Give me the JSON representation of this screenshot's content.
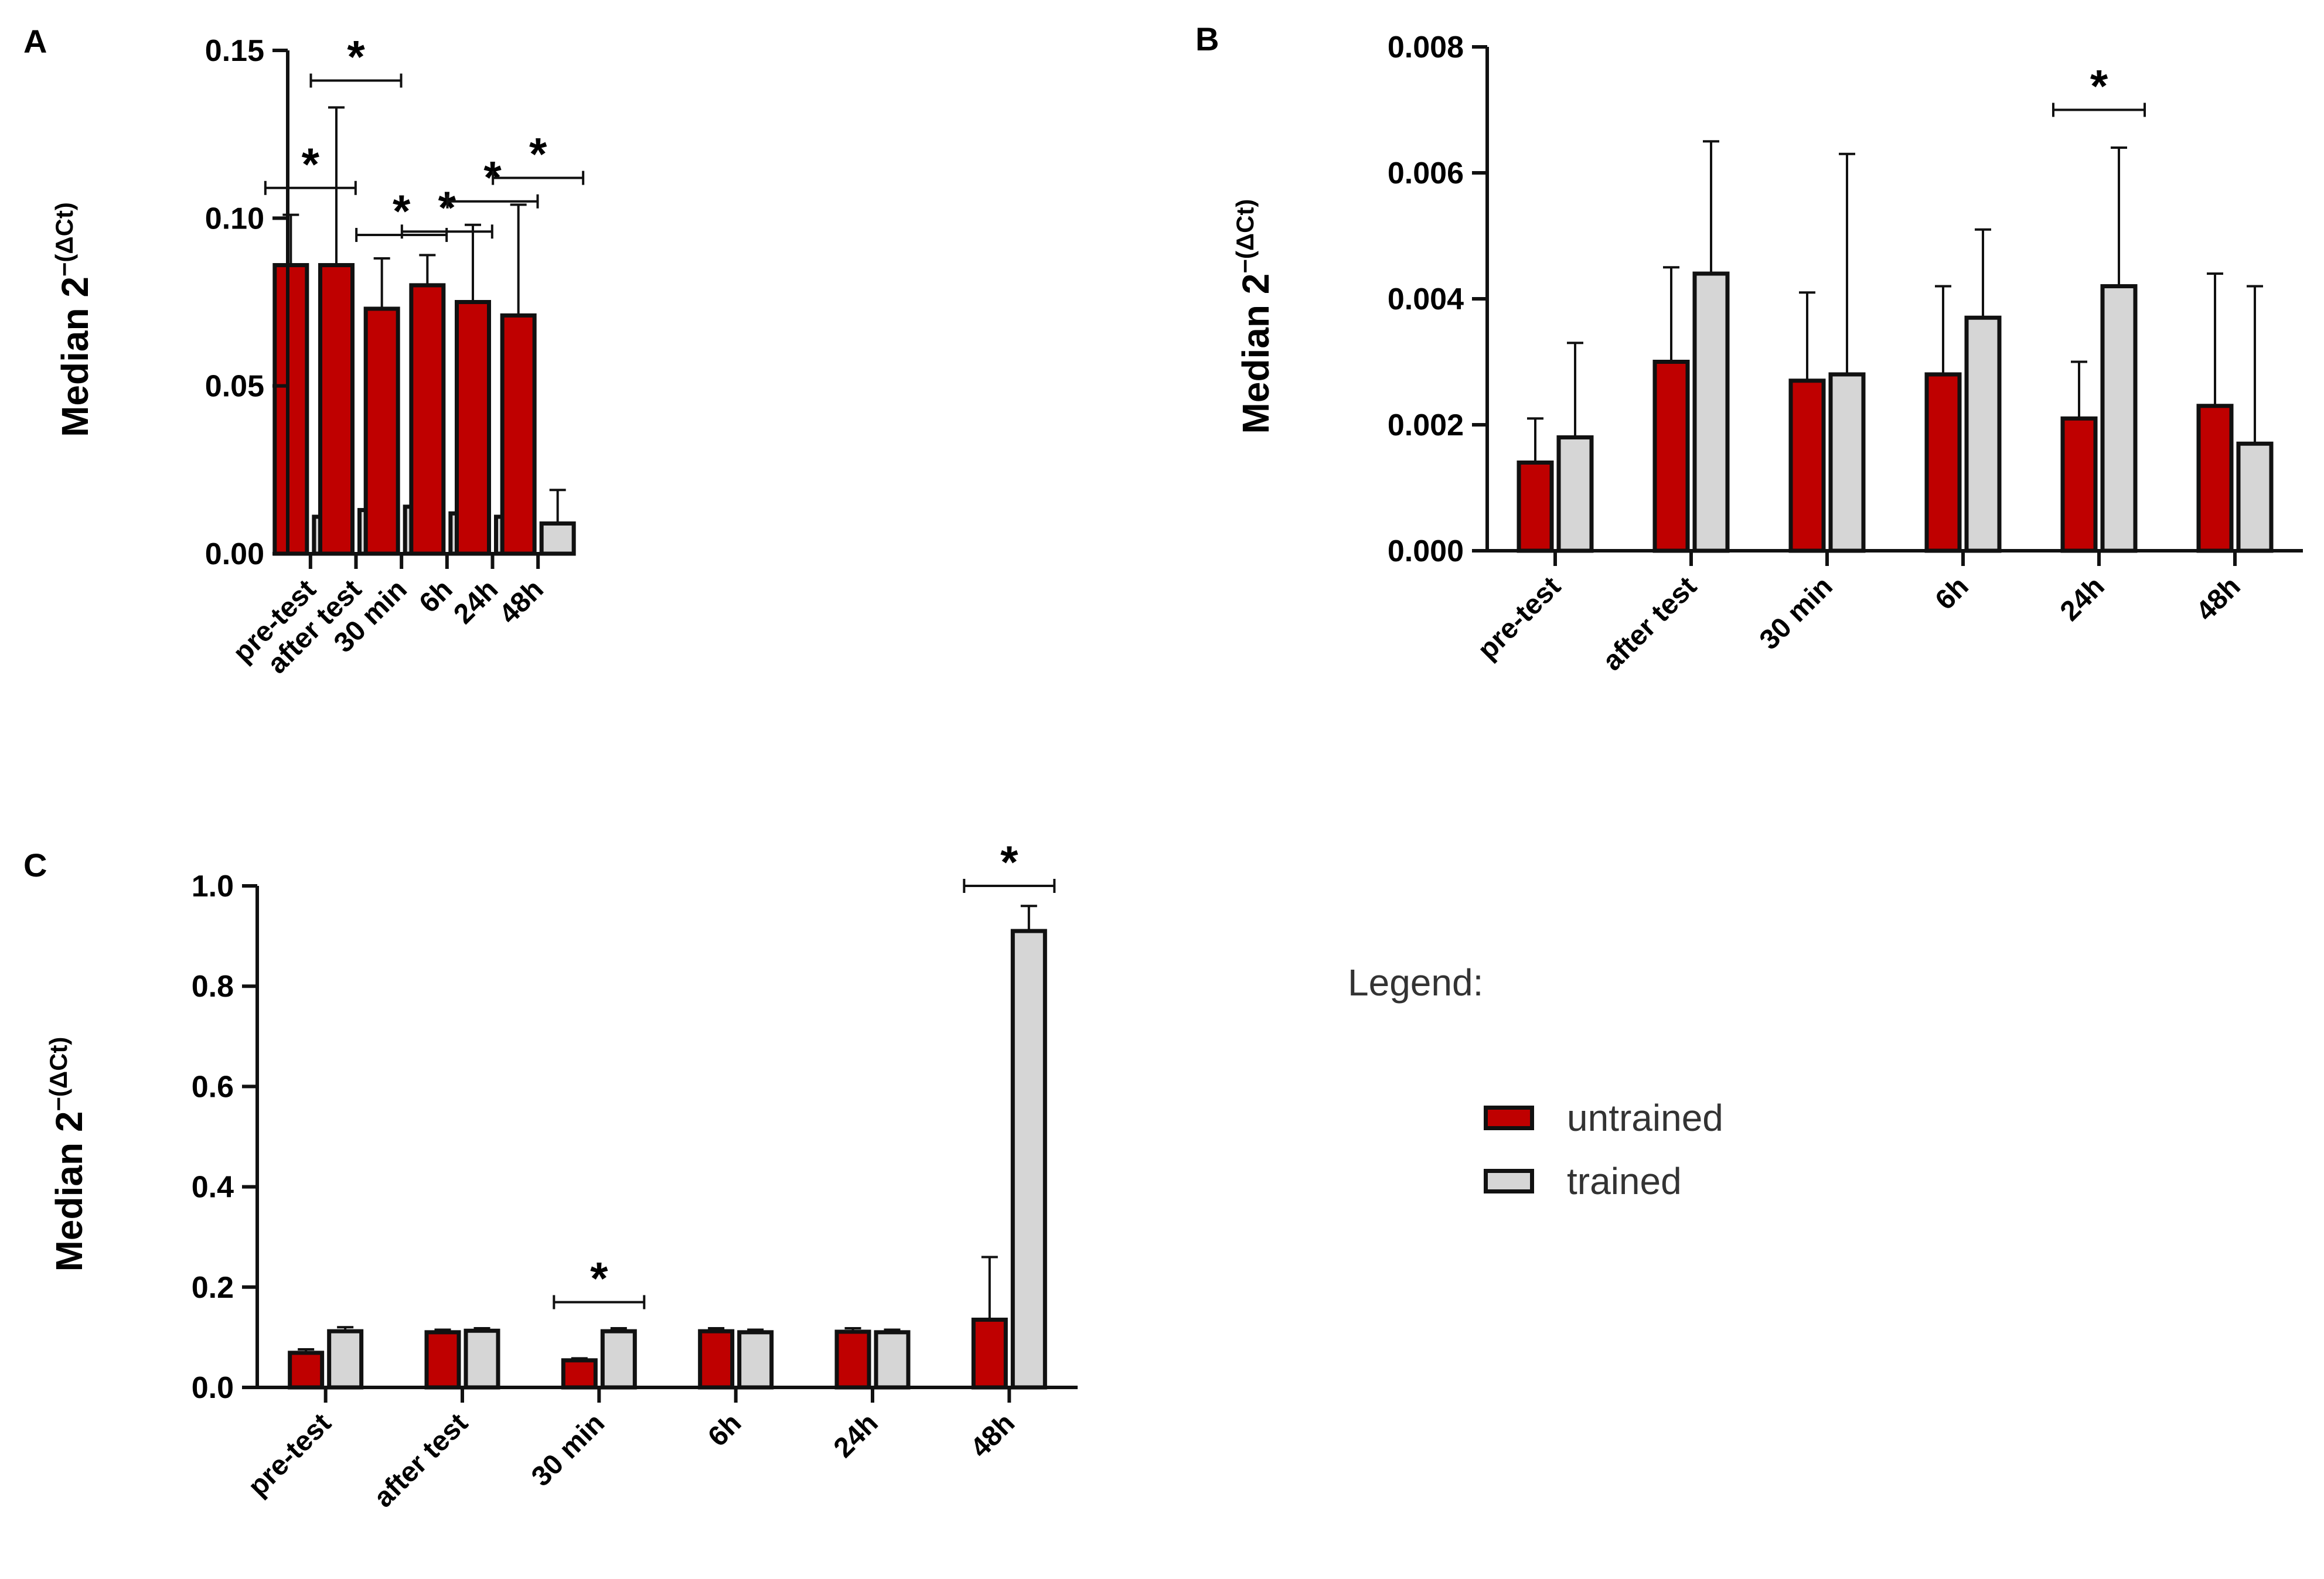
{
  "figure": {
    "background": "#ffffff"
  },
  "colors": {
    "untrained": "#bf0000",
    "trained": "#d6d6d6",
    "stroke": "#111111"
  },
  "legend": {
    "title": "Legend:",
    "items": [
      {
        "label": "untrained",
        "color": "#bf0000"
      },
      {
        "label": "trained",
        "color": "#d6d6d6"
      }
    ]
  },
  "chart_data": [
    {
      "panel": "A",
      "type": "bar",
      "ylabel_main": "Median 2",
      "ylabel_sup": "−(ΔCt)",
      "categories": [
        "pre-test",
        "after test",
        "30 min",
        "6h",
        "24h",
        "48h"
      ],
      "ylim": [
        0,
        0.15
      ],
      "yticks": [
        "0.00",
        "0.05",
        "0.10",
        "0.15"
      ],
      "tick_values": [
        0,
        0.05,
        0.1,
        0.15
      ],
      "series": [
        {
          "name": "untrained",
          "values": [
            0.086,
            0.086,
            0.073,
            0.08,
            0.075,
            0.071
          ],
          "error_top": [
            0.101,
            0.133,
            0.088,
            0.089,
            0.098,
            0.104
          ]
        },
        {
          "name": "trained",
          "values": [
            0.011,
            0.013,
            0.014,
            0.012,
            0.011,
            0.009
          ],
          "error_top": [
            0.023,
            0.019,
            0.024,
            0.028,
            0.026,
            0.019
          ]
        }
      ],
      "significance": [
        {
          "category": 0,
          "text": "*",
          "level": 0.109
        },
        {
          "category": 1,
          "text": "*",
          "level": 0.141
        },
        {
          "category": 2,
          "text": "*",
          "level": 0.095
        },
        {
          "category": 3,
          "text": "*",
          "level": 0.096
        },
        {
          "category": 4,
          "text": "*",
          "level": 0.105
        },
        {
          "category": 5,
          "text": "*",
          "level": 0.112
        }
      ]
    },
    {
      "panel": "B",
      "type": "bar",
      "ylabel_main": "Median 2",
      "ylabel_sup": "−(ΔCt)",
      "categories": [
        "pre-test",
        "after test",
        "30 min",
        "6h",
        "24h",
        "48h"
      ],
      "ylim": [
        0,
        0.008
      ],
      "yticks": [
        "0.000",
        "0.002",
        "0.004",
        "0.006",
        "0.008"
      ],
      "tick_values": [
        0,
        0.002,
        0.004,
        0.006,
        0.008
      ],
      "series": [
        {
          "name": "untrained",
          "values": [
            0.0014,
            0.003,
            0.0027,
            0.0028,
            0.0021,
            0.0023
          ],
          "error_top": [
            0.0021,
            0.0045,
            0.0041,
            0.0042,
            0.003,
            0.0044
          ]
        },
        {
          "name": "trained",
          "values": [
            0.0018,
            0.0044,
            0.0028,
            0.0037,
            0.0042,
            0.0017
          ],
          "error_top": [
            0.0033,
            0.0065,
            0.0063,
            0.0051,
            0.0064,
            0.0042
          ]
        }
      ],
      "significance": [
        {
          "category": 4,
          "text": "*",
          "level": 0.007
        }
      ]
    },
    {
      "panel": "C",
      "type": "bar",
      "ylabel_main": "Median 2",
      "ylabel_sup": "−(ΔCt)",
      "categories": [
        "pre-test",
        "after test",
        "30 min",
        "6h",
        "24h",
        "48h"
      ],
      "ylim": [
        0,
        1.0
      ],
      "yticks": [
        "0.0",
        "0.2",
        "0.4",
        "0.6",
        "0.8",
        "1.0"
      ],
      "tick_values": [
        0,
        0.2,
        0.4,
        0.6,
        0.8,
        1.0
      ],
      "series": [
        {
          "name": "untrained",
          "values": [
            0.069,
            0.11,
            0.054,
            0.112,
            0.111,
            0.135
          ],
          "error_top": [
            0.076,
            0.115,
            0.058,
            0.118,
            0.118,
            0.26
          ]
        },
        {
          "name": "trained",
          "values": [
            0.112,
            0.113,
            0.112,
            0.11,
            0.11,
            0.91
          ],
          "error_top": [
            0.12,
            0.118,
            0.118,
            0.115,
            0.115,
            0.96
          ]
        }
      ],
      "significance": [
        {
          "category": 2,
          "text": "*",
          "level": 0.17
        },
        {
          "category": 5,
          "text": "*",
          "level": 1.0
        }
      ]
    }
  ]
}
